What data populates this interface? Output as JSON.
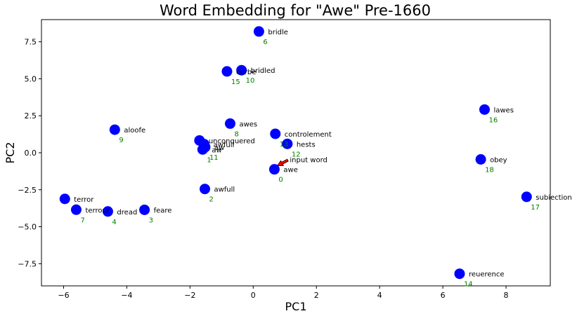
{
  "chart_data": {
    "type": "scatter",
    "title": "Word Embedding for \"Awe\" Pre-1660",
    "xlabel": "PC1",
    "ylabel": "PC2",
    "xlim": [
      -6.7,
      9.4
    ],
    "ylim": [
      -9.0,
      9.0
    ],
    "xticks": [
      -6,
      -4,
      -2,
      0,
      2,
      4,
      6,
      8
    ],
    "yticks": [
      -7.5,
      -5.0,
      -2.5,
      0.0,
      2.5,
      5.0,
      7.5
    ],
    "xtick_labels": [
      "−6",
      "−4",
      "−2",
      "0",
      "2",
      "4",
      "6",
      "8"
    ],
    "ytick_labels": [
      "−7.5",
      "−5.0",
      "−2.5",
      "0.0",
      "2.5",
      "5.0",
      "7.5"
    ],
    "grid": false,
    "point_color": "#0000ff",
    "rank_color": "#008000",
    "highlight_color": "#ff0000",
    "points": [
      {
        "word": "awe",
        "rank": "0",
        "x": 0.67,
        "y": -1.12,
        "highlight": true
      },
      {
        "word": "awfull",
        "rank": "2",
        "x": -1.53,
        "y": -2.45
      },
      {
        "word": "feare",
        "rank": "3",
        "x": -3.44,
        "y": -3.86
      },
      {
        "word": "dread",
        "rank": "4",
        "x": -4.6,
        "y": -3.97
      },
      {
        "word": "terror",
        "rank": "",
        "x": -5.96,
        "y": -3.12
      },
      {
        "word": "terrour",
        "rank": "7",
        "x": -5.6,
        "y": -3.85
      },
      {
        "word": "bridle",
        "rank": "6",
        "x": 0.18,
        "y": 8.2
      },
      {
        "word": "curbe",
        "rank": "15",
        "x": -0.83,
        "y": 5.5
      },
      {
        "word": "bridled",
        "rank": "10",
        "x": -0.37,
        "y": 5.58
      },
      {
        "word": "awes",
        "rank": "8",
        "x": -0.73,
        "y": 1.97
      },
      {
        "word": "aloofe",
        "rank": "9",
        "x": -4.38,
        "y": 1.56
      },
      {
        "word": "unconquered",
        "rank": "",
        "x": -1.7,
        "y": 0.83
      },
      {
        "word": "awfull",
        "rank": "",
        "x": -1.55,
        "y": 0.58
      },
      {
        "word": "aw",
        "rank": "11",
        "x": -1.52,
        "y": 0.38
      },
      {
        "word": "aw",
        "rank": "1",
        "x": -1.6,
        "y": 0.22
      },
      {
        "word": "controlement",
        "rank": "13",
        "x": 0.7,
        "y": 1.28
      },
      {
        "word": "hests",
        "rank": "12",
        "x": 1.08,
        "y": 0.6
      },
      {
        "word": "lawes",
        "rank": "16",
        "x": 7.32,
        "y": 2.92
      },
      {
        "word": "obey",
        "rank": "18",
        "x": 7.2,
        "y": -0.45
      },
      {
        "word": "subiection",
        "rank": "17",
        "x": 8.65,
        "y": -2.98
      },
      {
        "word": "reuerence",
        "rank": "14",
        "x": 6.53,
        "y": -8.18
      }
    ],
    "annotation": {
      "text": "input word",
      "target_word": "awe",
      "arrow_color": "#ff0000"
    }
  }
}
